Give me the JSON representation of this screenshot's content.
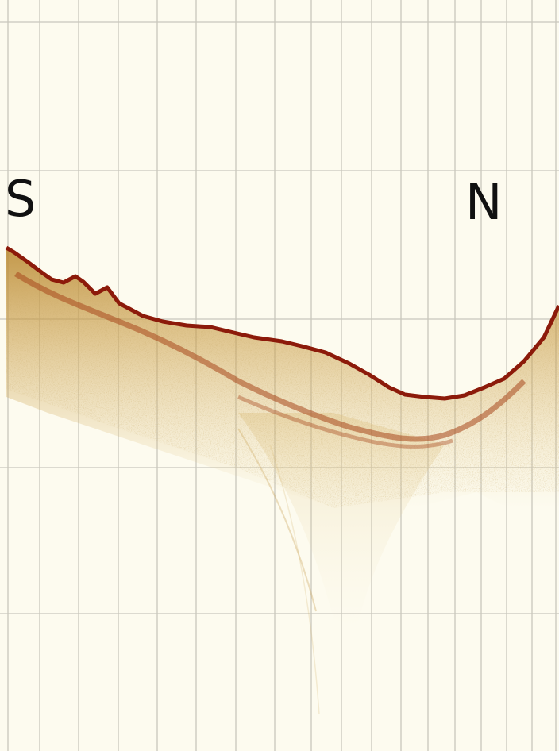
{
  "labels": {
    "start": "S",
    "end": "N"
  },
  "colors": {
    "background": "#fdfbef",
    "grid": "#c9c7bd",
    "surface": "#8c1a0a",
    "reflector": "#a8471c",
    "sediment": "#c79a3c",
    "label": "#111111"
  }
}
